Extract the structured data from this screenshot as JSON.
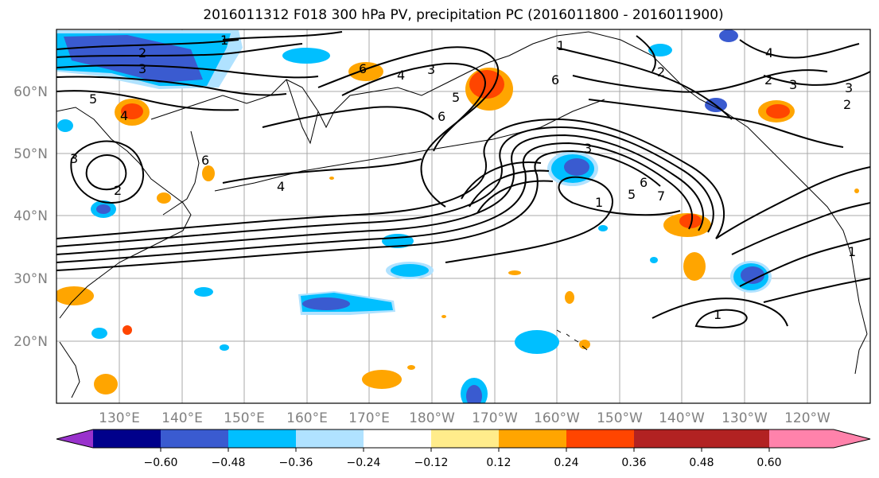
{
  "title": "2016011312 F018 300 hPa PV, precipitation PC (2016011800 - 2016011900)",
  "latitude_labels": [
    "60°N",
    "50°N",
    "40°N",
    "30°N",
    "20°N"
  ],
  "longitude_labels": [
    "130°E",
    "140°E",
    "150°E",
    "160°E",
    "170°E",
    "180°W",
    "170°W",
    "160°W",
    "150°W",
    "140°W",
    "130°W",
    "120°W"
  ],
  "contour_labels": [
    "1",
    "2",
    "3",
    "5",
    "4",
    "3",
    "2",
    "6",
    "4",
    "4",
    "3",
    "5",
    "6",
    "6",
    "1",
    "3",
    "6",
    "1",
    "7",
    "5",
    "6",
    "1",
    "2",
    "2",
    "3",
    "4",
    "3",
    "2",
    "1"
  ],
  "colorbar": {
    "tick_labels": [
      "−0.60",
      "−0.48",
      "−0.36",
      "−0.24",
      "−0.12",
      "0.12",
      "0.24",
      "0.36",
      "0.48",
      "0.60"
    ],
    "colors": [
      "#9932cc",
      "#00008b",
      "#3a5bd0",
      "#00bfff",
      "#b0e2ff",
      "#ffffff",
      "#ffec8b",
      "#ffa500",
      "#ff4500",
      "#b22222",
      "#ff82ab"
    ]
  },
  "colors": {
    "dark_blue": "#3a5bd0",
    "blue": "#00bfff",
    "light_blue": "#b0e2ff",
    "light_yellow": "#ffec8b",
    "orange": "#ffa500",
    "red_orange": "#ff4500",
    "gridline": "#a9a9a9",
    "contour": "#000000"
  }
}
